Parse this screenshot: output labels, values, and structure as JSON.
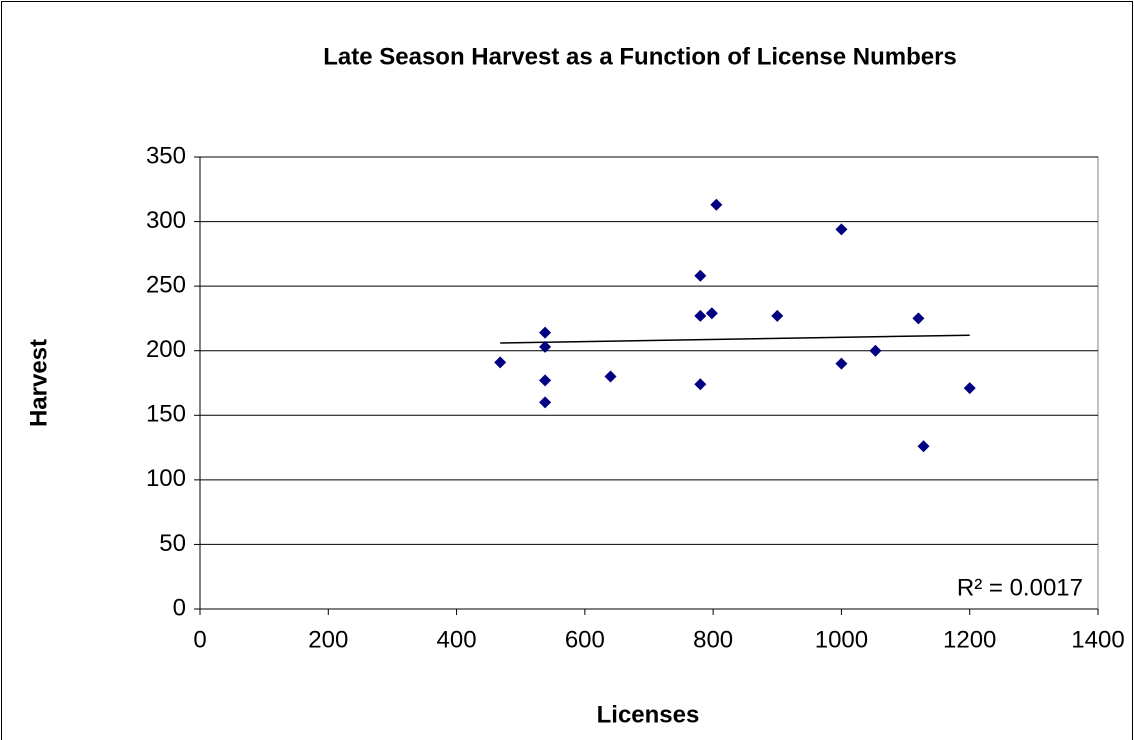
{
  "chart_data": {
    "type": "scatter",
    "title": "Late Season Harvest as a Function of License Numbers",
    "x_label": "Licenses",
    "y_label": "Harvest",
    "series": [
      {
        "name": "Harvest",
        "color": "#000080",
        "x": [
          468,
          538,
          538,
          538,
          538,
          640,
          780,
          780,
          780,
          798,
          805,
          900,
          1000,
          1000,
          1053,
          1120,
          1128,
          1200
        ],
        "values": [
          191,
          214,
          203,
          177,
          160,
          180,
          258,
          227,
          174,
          229,
          313,
          227,
          294,
          190,
          200,
          225,
          126,
          171
        ]
      }
    ],
    "trendline": {
      "x": [
        468,
        1200
      ],
      "values": [
        206,
        212
      ],
      "color": "#000000"
    },
    "annotation": "R² = 0.0017",
    "xlim": [
      0,
      1400
    ],
    "xticks": [
      0,
      200,
      400,
      600,
      800,
      1000,
      1200,
      1400
    ],
    "ylim": [
      0,
      350
    ],
    "yticks": [
      0,
      50,
      100,
      150,
      200,
      250,
      300,
      350
    ],
    "grid": true
  }
}
